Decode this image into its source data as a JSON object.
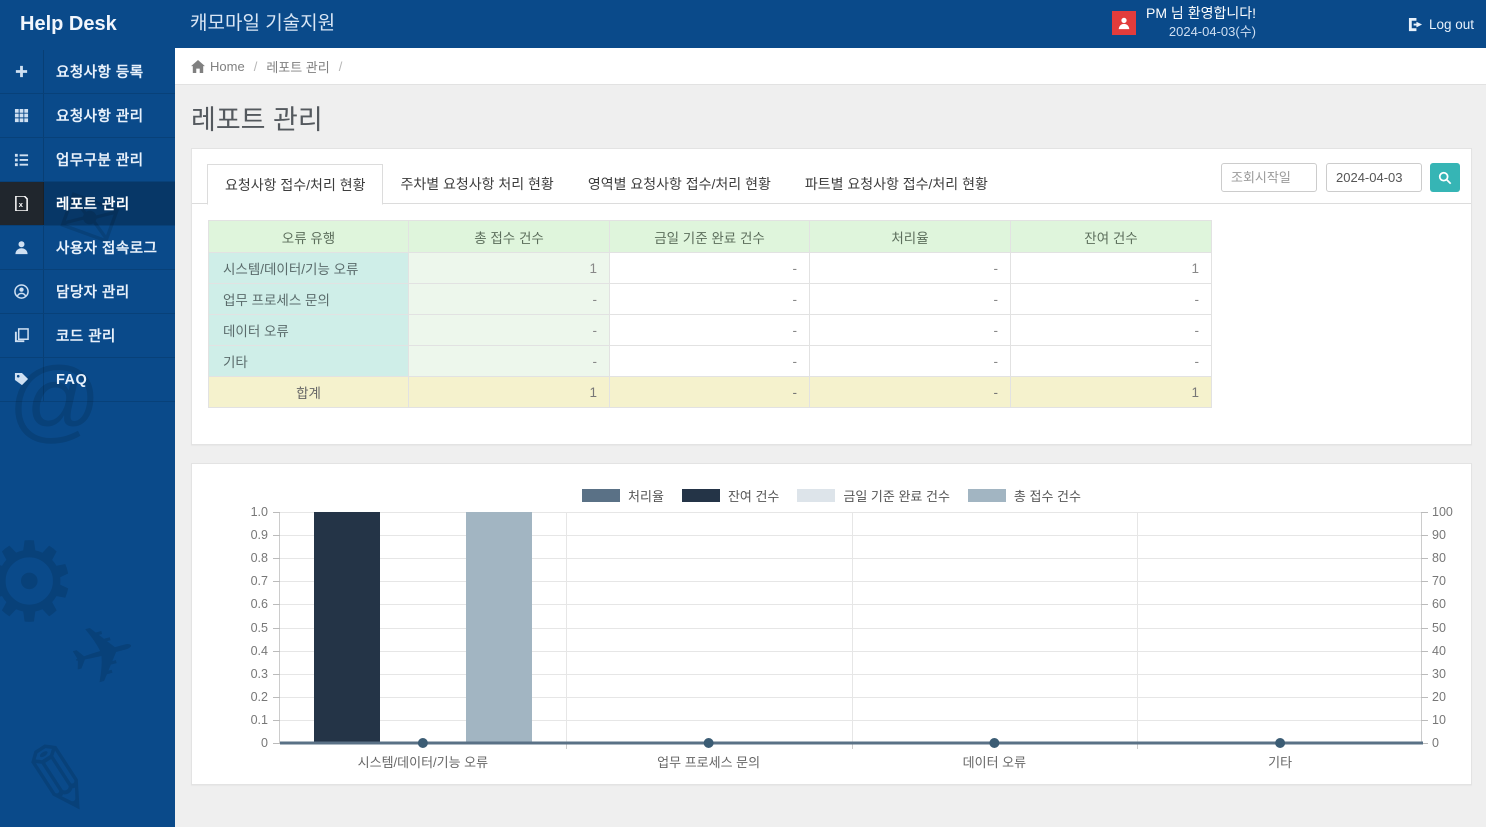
{
  "colors": {
    "topbar_blue": "#0a4a8a",
    "sidebar_active_dark": "#20262d",
    "accent_teal": "#36b5b5",
    "avatar_red": "#e23c3c",
    "table_header_green": "#dff5dc",
    "table_col_teal": "#cfeee8",
    "table_col_green": "#edf7ec",
    "table_total_yellow": "#f5f2cd"
  },
  "topbar": {
    "logo": "Help Desk",
    "app_title": "캐모마일 기술지원",
    "welcome": "PM 님 환영합니다!",
    "date": "2024-04-03(수)",
    "logout_label": "Log out"
  },
  "sidebar": {
    "items": [
      {
        "name": "request-register",
        "icon": "plus-icon",
        "label": "요청사항 등록",
        "active": false
      },
      {
        "name": "request-manage",
        "icon": "grid-icon",
        "label": "요청사항 관리",
        "active": false
      },
      {
        "name": "task-category-manage",
        "icon": "list-icon",
        "label": "업무구분 관리",
        "active": false
      },
      {
        "name": "report-manage",
        "icon": "file-excel-icon",
        "label": "레포트 관리",
        "active": true
      },
      {
        "name": "user-access-log",
        "icon": "user-icon",
        "label": "사용자 접속로그",
        "active": false
      },
      {
        "name": "manager-manage",
        "icon": "user-circle-icon",
        "label": "담당자 관리",
        "active": false
      },
      {
        "name": "code-manage",
        "icon": "copy-icon",
        "label": "코드 관리",
        "active": false
      },
      {
        "name": "faq",
        "icon": "tag-icon",
        "label": "FAQ",
        "active": false
      }
    ]
  },
  "breadcrumb": {
    "home": "Home",
    "current": "레포트 관리",
    "separator": "/"
  },
  "page": {
    "title": "레포트 관리"
  },
  "tabs": [
    {
      "name": "tab-receipt-process-status",
      "label": "요청사항 접수/처리 현황",
      "active": true
    },
    {
      "name": "tab-weekly-process-status",
      "label": "주차별 요청사항 처리 현황",
      "active": false
    },
    {
      "name": "tab-area-status",
      "label": "영역별 요청사항 접수/처리 현황",
      "active": false
    },
    {
      "name": "tab-part-status",
      "label": "파트별 요청사항 접수/처리 현황",
      "active": false
    }
  ],
  "search": {
    "start_placeholder": "조회시작일",
    "end_value": "2024-04-03"
  },
  "table": {
    "headers": [
      "오류 유행",
      "총 접수 건수",
      "금일 기준 완료 건수",
      "처리율",
      "잔여 건수"
    ],
    "rows": [
      {
        "label": "시스템/데이터/기능 오류",
        "values": [
          "1",
          "-",
          "-",
          "1"
        ]
      },
      {
        "label": "업무 프로세스 문의",
        "values": [
          "-",
          "-",
          "-",
          "-"
        ]
      },
      {
        "label": "데이터 오류",
        "values": [
          "-",
          "-",
          "-",
          "-"
        ]
      },
      {
        "label": "기타",
        "values": [
          "-",
          "-",
          "-",
          "-"
        ]
      }
    ],
    "total": {
      "label": "합계",
      "values": [
        "1",
        "-",
        "-",
        "1"
      ]
    }
  },
  "chart_data": {
    "type": "bar",
    "categories": [
      "시스템/데이터/기능 오류",
      "업무 프로세스 문의",
      "데이터 오류",
      "기타"
    ],
    "series": [
      {
        "name": "처리율",
        "type": "line",
        "axis": "right",
        "color": "#5a7186",
        "point_color": "#3b5c74",
        "values": [
          0,
          0,
          0,
          0
        ]
      },
      {
        "name": "잔여 건수",
        "type": "bar",
        "axis": "left",
        "color": "#243447",
        "values": [
          1,
          0,
          0,
          0
        ]
      },
      {
        "name": "금일 기준 완료 건수",
        "type": "bar",
        "axis": "left",
        "color": "#dde4ea",
        "values": [
          0,
          0,
          0,
          0
        ]
      },
      {
        "name": "총 접수 건수",
        "type": "bar",
        "axis": "left",
        "color": "#a2b5c2",
        "values": [
          1,
          0,
          0,
          0
        ]
      }
    ],
    "left_axis": {
      "min": 0,
      "max": 1,
      "step": 0.1
    },
    "right_axis": {
      "min": 0,
      "max": 100,
      "step": 10
    },
    "grid": true,
    "legend_position": "top-center",
    "title": "",
    "xlabel": "",
    "ylabel": ""
  }
}
